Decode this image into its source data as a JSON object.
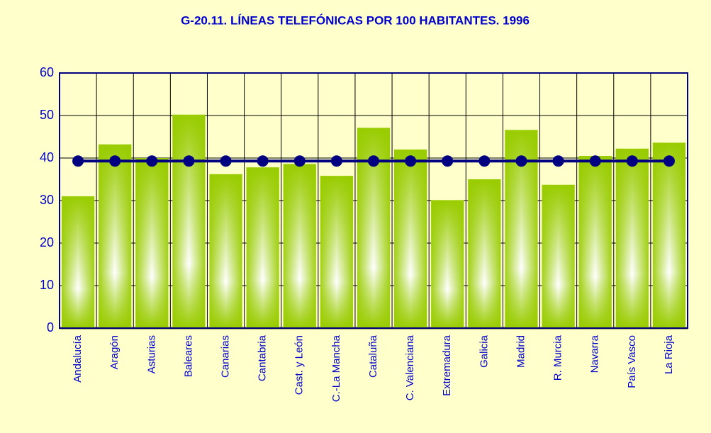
{
  "chart_data": {
    "type": "bar",
    "title": "G-20.11. LÍNEAS TELEFÓNICAS POR 100 HABITANTES. 1996",
    "categories": [
      "Andalucía",
      "Aragón",
      "Asturias",
      "Baleares",
      "Canarias",
      "Cantabria",
      "Cast. y León",
      "C.-La Mancha",
      "Cataluña",
      "C. Valenciana",
      "Extremadura",
      "Galicia",
      "Madrid",
      "R. Murcia",
      "Navarra",
      "País Vasco",
      "La Rioja"
    ],
    "series": [
      {
        "type": "bar",
        "color": "#99cc00",
        "values": [
          31,
          43.2,
          40,
          50.2,
          36.2,
          37.8,
          38.6,
          35.8,
          47.1,
          42,
          30.1,
          35,
          46.6,
          33.7,
          40.5,
          42.2,
          43.6
        ]
      },
      {
        "type": "line",
        "color": "#000080",
        "values": [
          39.3,
          39.3,
          39.3,
          39.3,
          39.3,
          39.3,
          39.3,
          39.3,
          39.3,
          39.3,
          39.3,
          39.3,
          39.3,
          39.3,
          39.3,
          39.3,
          39.3
        ]
      }
    ],
    "ylim": [
      0,
      60
    ],
    "yticks": [
      0,
      10,
      20,
      30,
      40,
      50,
      60
    ],
    "grid": true
  }
}
